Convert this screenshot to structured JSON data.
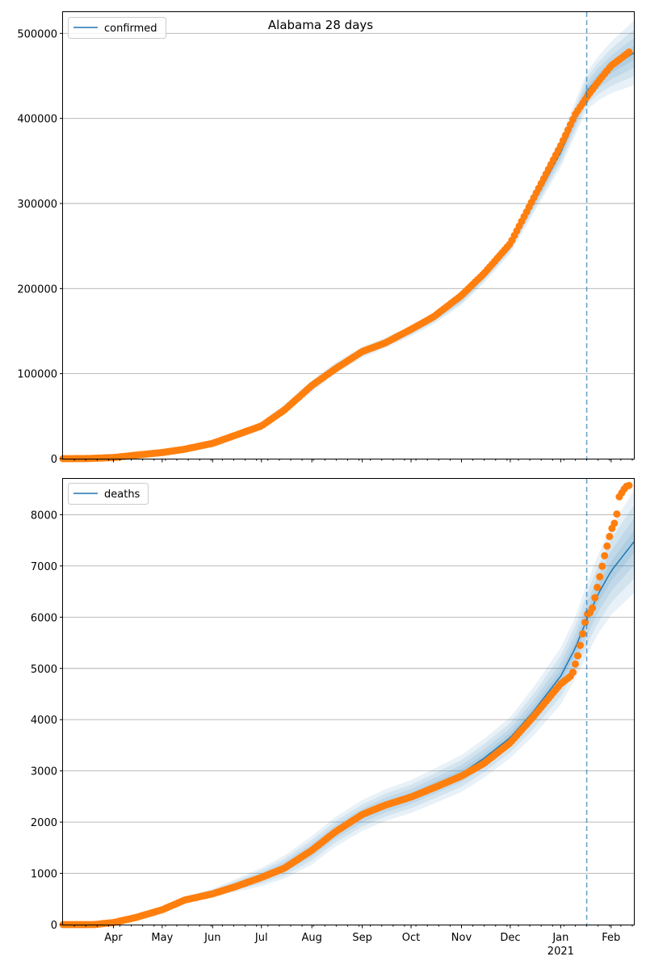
{
  "title": "Alabama 28 days",
  "colors": {
    "model_line": "#1f77b4",
    "band": "#1f77b4",
    "observed": "#ff7f0e",
    "forecast_line": "#1f77b4",
    "grid": "#b0b0b0"
  },
  "chart_data": [
    {
      "type": "line",
      "name": "confirmed",
      "legend": "confirmed",
      "legend_position": "top-left",
      "grid": "y",
      "xlim": [
        "2020-03-01",
        "2021-02-15"
      ],
      "ylim": [
        0,
        525000
      ],
      "yticks": [
        0,
        100000,
        200000,
        300000,
        400000,
        500000
      ],
      "ytick_labels": [
        "0",
        "100000",
        "200000",
        "300000",
        "400000",
        "500000"
      ],
      "forecast_start": "2021-01-17",
      "model_points": [
        [
          "2020-03-01",
          0
        ],
        [
          "2020-03-15",
          200
        ],
        [
          "2020-04-01",
          1500
        ],
        [
          "2020-04-15",
          4500
        ],
        [
          "2020-05-01",
          7500
        ],
        [
          "2020-05-15",
          11500
        ],
        [
          "2020-06-01",
          18000
        ],
        [
          "2020-06-15",
          27000
        ],
        [
          "2020-07-01",
          38000
        ],
        [
          "2020-07-15",
          58000
        ],
        [
          "2020-08-01",
          85000
        ],
        [
          "2020-08-15",
          106000
        ],
        [
          "2020-09-01",
          125000
        ],
        [
          "2020-09-15",
          136000
        ],
        [
          "2020-10-01",
          150000
        ],
        [
          "2020-10-15",
          165000
        ],
        [
          "2020-11-01",
          188000
        ],
        [
          "2020-11-15",
          215000
        ],
        [
          "2020-12-01",
          250000
        ],
        [
          "2020-12-15",
          300000
        ],
        [
          "2021-01-01",
          360000
        ],
        [
          "2021-01-10",
          400000
        ],
        [
          "2021-01-17",
          432000
        ],
        [
          "2021-01-24",
          447000
        ],
        [
          "2021-02-01",
          460000
        ],
        [
          "2021-02-15",
          477000
        ]
      ],
      "band_widths": [
        [
          "2020-03-01",
          0
        ],
        [
          "2020-06-01",
          2000
        ],
        [
          "2020-08-01",
          7000
        ],
        [
          "2020-10-01",
          6000
        ],
        [
          "2020-12-01",
          9000
        ],
        [
          "2021-01-10",
          20000
        ],
        [
          "2021-01-17",
          22000
        ],
        [
          "2021-02-15",
          38000
        ]
      ],
      "observed_points": [
        [
          "2020-03-01",
          0
        ],
        [
          "2020-03-15",
          100
        ],
        [
          "2020-04-01",
          1300
        ],
        [
          "2020-04-15",
          4200
        ],
        [
          "2020-05-01",
          7200
        ],
        [
          "2020-05-15",
          11200
        ],
        [
          "2020-06-01",
          18000
        ],
        [
          "2020-06-15",
          27500
        ],
        [
          "2020-07-01",
          38500
        ],
        [
          "2020-07-15",
          57000
        ],
        [
          "2020-08-01",
          86000
        ],
        [
          "2020-08-15",
          105000
        ],
        [
          "2020-09-01",
          126000
        ],
        [
          "2020-09-15",
          136000
        ],
        [
          "2020-10-01",
          152000
        ],
        [
          "2020-10-15",
          167000
        ],
        [
          "2020-11-01",
          192000
        ],
        [
          "2020-11-15",
          218000
        ],
        [
          "2020-12-01",
          253000
        ],
        [
          "2020-12-15",
          305000
        ],
        [
          "2021-01-01",
          368000
        ],
        [
          "2021-01-10",
          405000
        ],
        [
          "2021-01-17",
          425000
        ],
        [
          "2021-01-24",
          443000
        ],
        [
          "2021-02-01",
          462000
        ],
        [
          "2021-02-08",
          472000
        ],
        [
          "2021-02-12",
          478000
        ]
      ]
    },
    {
      "type": "line",
      "name": "deaths",
      "legend": "deaths",
      "legend_position": "top-left",
      "grid": "y",
      "xlim": [
        "2020-03-01",
        "2021-02-15"
      ],
      "ylim": [
        0,
        8700
      ],
      "yticks": [
        0,
        1000,
        2000,
        3000,
        4000,
        5000,
        6000,
        7000,
        8000
      ],
      "ytick_labels": [
        "0",
        "1000",
        "2000",
        "3000",
        "4000",
        "5000",
        "6000",
        "7000",
        "8000"
      ],
      "forecast_start": "2021-01-17",
      "model_points": [
        [
          "2020-03-01",
          0
        ],
        [
          "2020-03-15",
          0
        ],
        [
          "2020-04-01",
          40
        ],
        [
          "2020-04-15",
          150
        ],
        [
          "2020-05-01",
          300
        ],
        [
          "2020-05-15",
          480
        ],
        [
          "2020-06-01",
          620
        ],
        [
          "2020-06-15",
          760
        ],
        [
          "2020-07-01",
          930
        ],
        [
          "2020-07-15",
          1120
        ],
        [
          "2020-08-01",
          1450
        ],
        [
          "2020-08-15",
          1800
        ],
        [
          "2020-09-01",
          2130
        ],
        [
          "2020-09-15",
          2330
        ],
        [
          "2020-10-01",
          2500
        ],
        [
          "2020-10-15",
          2700
        ],
        [
          "2020-11-01",
          2950
        ],
        [
          "2020-11-15",
          3250
        ],
        [
          "2020-12-01",
          3650
        ],
        [
          "2020-12-15",
          4150
        ],
        [
          "2021-01-01",
          4850
        ],
        [
          "2021-01-10",
          5400
        ],
        [
          "2021-01-17",
          5950
        ],
        [
          "2021-01-24",
          6450
        ],
        [
          "2021-02-01",
          6900
        ],
        [
          "2021-02-15",
          7470
        ]
      ],
      "band_widths": [
        [
          "2020-03-01",
          0
        ],
        [
          "2020-04-15",
          40
        ],
        [
          "2020-06-01",
          80
        ],
        [
          "2020-08-01",
          280
        ],
        [
          "2020-10-01",
          320
        ],
        [
          "2020-12-01",
          400
        ],
        [
          "2021-01-10",
          600
        ],
        [
          "2021-01-17",
          700
        ],
        [
          "2021-02-15",
          1000
        ]
      ],
      "observed_points": [
        [
          "2020-03-01",
          0
        ],
        [
          "2020-03-20",
          0
        ],
        [
          "2020-04-01",
          40
        ],
        [
          "2020-04-15",
          140
        ],
        [
          "2020-05-01",
          290
        ],
        [
          "2020-05-15",
          480
        ],
        [
          "2020-06-01",
          600
        ],
        [
          "2020-06-15",
          740
        ],
        [
          "2020-07-01",
          920
        ],
        [
          "2020-07-15",
          1100
        ],
        [
          "2020-08-01",
          1450
        ],
        [
          "2020-08-15",
          1800
        ],
        [
          "2020-09-01",
          2150
        ],
        [
          "2020-09-15",
          2330
        ],
        [
          "2020-10-01",
          2490
        ],
        [
          "2020-10-15",
          2670
        ],
        [
          "2020-11-01",
          2900
        ],
        [
          "2020-11-15",
          3150
        ],
        [
          "2020-12-01",
          3550
        ],
        [
          "2020-12-15",
          4050
        ],
        [
          "2021-01-01",
          4700
        ],
        [
          "2021-01-08",
          4870
        ],
        [
          "2021-01-12",
          5300
        ],
        [
          "2021-01-17",
          6050
        ],
        [
          "2021-01-20",
          6110
        ],
        [
          "2021-01-24",
          6650
        ],
        [
          "2021-01-28",
          7200
        ],
        [
          "2021-02-01",
          7700
        ],
        [
          "2021-02-04",
          7900
        ],
        [
          "2021-02-06",
          8350
        ],
        [
          "2021-02-10",
          8550
        ],
        [
          "2021-02-13",
          8580
        ]
      ]
    }
  ],
  "x_axis": {
    "ticks": [
      "2020-04-01",
      "2020-05-01",
      "2020-06-01",
      "2020-07-01",
      "2020-08-01",
      "2020-09-01",
      "2020-10-01",
      "2020-11-01",
      "2020-12-01",
      "2021-01-01",
      "2021-02-01"
    ],
    "tick_labels": [
      "Apr",
      "May",
      "Jun",
      "Jul",
      "Aug",
      "Sep",
      "Oct",
      "Nov",
      "Dec",
      "Jan",
      "Feb"
    ],
    "year_label": "2021"
  }
}
